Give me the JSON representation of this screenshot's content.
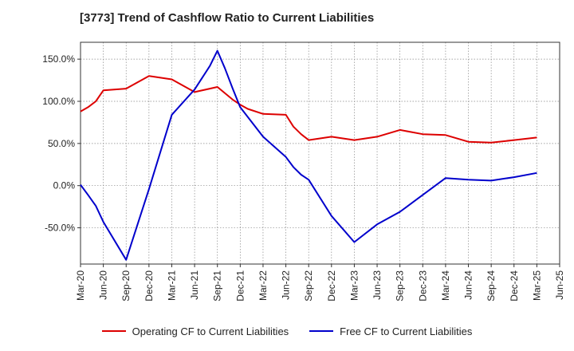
{
  "chart_data": {
    "type": "line",
    "title": "[3773]  Trend of Cashflow Ratio to Current Liabilities",
    "xlabel": "",
    "ylabel": "",
    "x": [
      "Mar-20",
      "Jun-20",
      "Sep-20",
      "Dec-20",
      "Mar-21",
      "Jun-21",
      "Sep-21",
      "Dec-21",
      "Mar-22",
      "Jun-22",
      "Sep-22",
      "Dec-22",
      "Mar-23",
      "Jun-23",
      "Sep-23",
      "Dec-23",
      "Mar-24",
      "Jun-24",
      "Sep-24",
      "Dec-24",
      "Mar-25",
      "Jun-25"
    ],
    "y_ticks": [
      150,
      100,
      50,
      0,
      -50
    ],
    "y_tick_labels": [
      "150.0%",
      "100.0%",
      "50.0%",
      "0.0%",
      "-50.0%"
    ],
    "ylim": [
      -93,
      170
    ],
    "grid": true,
    "legend_position": "bottom",
    "series": [
      {
        "name": "Operating CF to Current Liabilities",
        "color": "#dd0000",
        "x": [
          0,
          0.33,
          0.67,
          1,
          2,
          3,
          4,
          5,
          6,
          6.67,
          7,
          7.33,
          8,
          9,
          9.33,
          9.67,
          10,
          11,
          12,
          13,
          14,
          15,
          16,
          17,
          18,
          19,
          20
        ],
        "values": [
          88,
          93,
          100,
          113,
          115,
          130,
          126,
          111,
          117,
          102,
          96,
          91,
          85,
          84,
          70,
          61,
          54,
          58,
          54,
          58,
          66,
          61,
          60,
          52,
          51,
          54,
          57
        ]
      },
      {
        "name": "Free CF to Current Liabilities",
        "color": "#0000cc",
        "x": [
          0,
          0.33,
          0.67,
          1,
          2,
          3,
          4,
          5,
          5.67,
          6,
          6.33,
          6.67,
          7,
          8,
          9,
          9.33,
          9.67,
          10,
          11,
          12,
          13,
          14,
          15,
          16,
          17,
          18,
          19,
          20
        ],
        "values": [
          1,
          -11,
          -24,
          -43,
          -88,
          -4,
          84,
          114,
          142,
          160,
          139,
          115,
          93,
          58,
          34,
          22,
          13,
          7,
          -36,
          -67,
          -46,
          -31,
          -11,
          9,
          7,
          6,
          10,
          15
        ]
      }
    ]
  }
}
